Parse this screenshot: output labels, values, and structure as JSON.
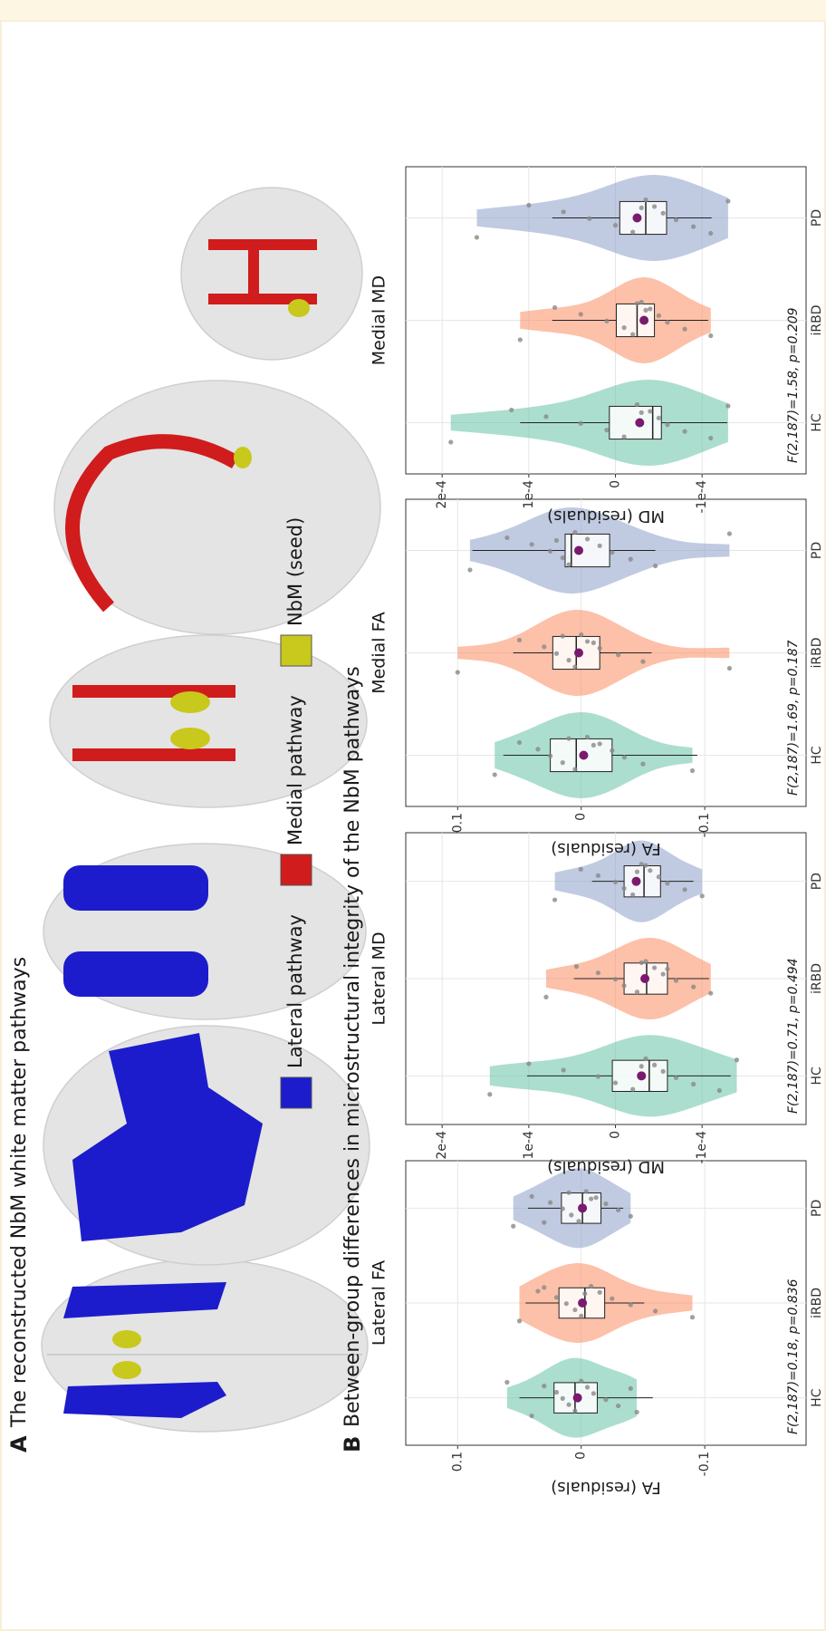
{
  "panel_a": {
    "label": "A",
    "title": "The reconstructed NbM white matter pathways",
    "legend": [
      {
        "name": "Lateral pathway",
        "color": "#1c1ccc"
      },
      {
        "name": "Medial pathway",
        "color": "#d01c1c"
      },
      {
        "name": "NbM (seed)",
        "color": "#c9c81d"
      }
    ]
  },
  "panel_b": {
    "label": "B",
    "title": "Between-group differences in microstructural integrity of the NbM pathways"
  },
  "chart_data": [
    {
      "type": "violin",
      "title": "Lateral FA",
      "ylabel": "FA (residuals)",
      "stat": "F(2,187)=0.18, p=0.836",
      "ylim": [
        -0.182,
        0.142
      ],
      "yticks": [
        -0.1,
        0,
        0.1
      ],
      "groups": [
        {
          "name": "HC",
          "color": "#66c2a5",
          "q1": -0.013,
          "median": 0.005,
          "q3": 0.022,
          "whisker_low": -0.058,
          "whisker_high": 0.05,
          "mean": 0.003,
          "points": [
            0.04,
            0.03,
            0.02,
            0.015,
            0.01,
            0.005,
            0,
            -0.005,
            -0.01,
            -0.02,
            -0.03,
            -0.045,
            0.06,
            -0.04
          ]
        },
        {
          "name": "iRBD",
          "color": "#fc8d62",
          "q1": -0.019,
          "median": -0.003,
          "q3": 0.018,
          "whisker_low": -0.051,
          "whisker_high": 0.045,
          "mean": -0.001,
          "points": [
            0.05,
            0.035,
            0.02,
            0.012,
            0.005,
            0,
            -0.008,
            -0.015,
            -0.025,
            -0.04,
            -0.06,
            -0.09,
            0.03,
            -0.003
          ]
        },
        {
          "name": "PD",
          "color": "#8da0cb",
          "q1": -0.016,
          "median": -0.001,
          "q3": 0.016,
          "whisker_low": -0.034,
          "whisker_high": 0.043,
          "mean": -0.001,
          "points": [
            0.055,
            0.04,
            0.025,
            0.015,
            0.008,
            0.002,
            -0.004,
            -0.012,
            -0.02,
            -0.03,
            -0.04,
            0.03,
            0.01,
            -0.008
          ]
        }
      ]
    },
    {
      "type": "violin",
      "title": "Lateral MD",
      "ylabel": "MD (residuals)",
      "stat": "F(2,187)=0.71, p=0.494",
      "ylim": [
        -0.00022,
        0.000242
      ],
      "yticks": [
        {
          "value": -0.0001,
          "label": "-1e-4"
        },
        0,
        {
          "value": 0.0001,
          "label": "1e-4"
        },
        {
          "value": 0.0002,
          "label": "2e-4"
        }
      ],
      "groups": [
        {
          "name": "HC",
          "color": "#66c2a5",
          "q1": -6e-05,
          "median": -3.9e-05,
          "q3": 3.6e-06,
          "whisker_low": -0.000133,
          "whisker_high": 0.000102,
          "mean": -3e-05,
          "points": [
            0.000145,
            0.0001,
            6e-05,
            2e-05,
            0,
            -2e-05,
            -3.5e-05,
            -4.5e-05,
            -5.5e-05,
            -7e-05,
            -9e-05,
            -0.00012,
            -0.00014,
            -3e-05
          ]
        },
        {
          "name": "iRBD",
          "color": "#fc8d62",
          "q1": -6e-05,
          "median": -3.6e-05,
          "q3": -1e-05,
          "whisker_low": -0.000108,
          "whisker_high": 4.8e-05,
          "mean": -3.4e-05,
          "points": [
            8e-05,
            4.5e-05,
            2e-05,
            0,
            -1e-05,
            -2.5e-05,
            -3.5e-05,
            -4.5e-05,
            -5.5e-05,
            -7e-05,
            -9e-05,
            -0.00011,
            -3e-05,
            -6e-05
          ]
        },
        {
          "name": "PD",
          "color": "#8da0cb",
          "q1": -5.2e-05,
          "median": -3.3e-05,
          "q3": -1e-05,
          "whisker_low": -9e-05,
          "whisker_high": 2.7e-05,
          "mean": -2.4e-05,
          "points": [
            7e-05,
            4e-05,
            2e-05,
            0,
            -1e-05,
            -2e-05,
            -3e-05,
            -4e-05,
            -5e-05,
            -6e-05,
            -8e-05,
            -0.0001,
            -3.5e-05,
            -2.5e-05
          ]
        }
      ]
    },
    {
      "type": "violin",
      "title": "Medial FA",
      "ylabel": "FA (residuals)",
      "stat": "F(2,187)=1.69, p=0.187",
      "ylim": [
        -0.182,
        0.142
      ],
      "yticks": [
        -0.1,
        0,
        0.1
      ],
      "groups": [
        {
          "name": "HC",
          "color": "#66c2a5",
          "q1": -0.025,
          "median": 0.004,
          "q3": 0.025,
          "whisker_low": -0.094,
          "whisker_high": 0.063,
          "mean": -0.002,
          "points": [
            0.07,
            0.05,
            0.035,
            0.025,
            0.015,
            0.005,
            -0.005,
            -0.015,
            -0.025,
            -0.035,
            -0.05,
            -0.09,
            0.01,
            -0.01
          ]
        },
        {
          "name": "iRBD",
          "color": "#fc8d62",
          "q1": -0.015,
          "median": 0.004,
          "q3": 0.023,
          "whisker_low": -0.057,
          "whisker_high": 0.055,
          "mean": 0.002,
          "points": [
            0.1,
            0.05,
            0.03,
            0.02,
            0.01,
            0.005,
            0,
            -0.005,
            -0.015,
            -0.03,
            -0.05,
            -0.12,
            0.015,
            -0.01
          ]
        },
        {
          "name": "PD",
          "color": "#8da0cb",
          "q1": -0.023,
          "median": 0.008,
          "q3": 0.013,
          "whisker_low": -0.06,
          "whisker_high": 0.088,
          "mean": 0.002,
          "points": [
            0.09,
            0.06,
            0.04,
            0.025,
            0.015,
            0.01,
            0.005,
            -0.005,
            -0.015,
            -0.025,
            -0.04,
            -0.06,
            -0.12,
            0.02
          ]
        }
      ]
    },
    {
      "type": "violin",
      "title": "Medial MD",
      "ylabel": "MD (residuals)",
      "stat": "F(2,187)=1.58, p=0.209",
      "ylim": [
        -0.00022,
        0.000242
      ],
      "yticks": [
        {
          "value": -0.0001,
          "label": "-1e-4"
        },
        0,
        {
          "value": 0.0001,
          "label": "1e-4"
        },
        {
          "value": 0.0002,
          "label": "2e-4"
        }
      ],
      "groups": [
        {
          "name": "HC",
          "color": "#66c2a5",
          "q1": -5.3e-05,
          "median": -4.3e-05,
          "q3": 7e-06,
          "whisker_low": -0.000129,
          "whisker_high": 0.00011,
          "mean": -2.8e-05,
          "points": [
            0.00019,
            0.00012,
            8e-05,
            4e-05,
            1e-05,
            -1e-05,
            -2.5e-05,
            -4e-05,
            -5e-05,
            -6e-05,
            -8e-05,
            -0.00011,
            -0.00013,
            -3e-05
          ]
        },
        {
          "name": "iRBD",
          "color": "#fc8d62",
          "q1": -4.5e-05,
          "median": -2.5e-05,
          "q3": -1e-06,
          "whisker_low": -0.000107,
          "whisker_high": 7.3e-05,
          "mean": -3.3e-05,
          "points": [
            0.00011,
            7e-05,
            4e-05,
            1e-05,
            -1e-05,
            -2e-05,
            -3e-05,
            -4e-05,
            -5e-05,
            -6e-05,
            -8e-05,
            -0.00011,
            -2.5e-05,
            -3.5e-05
          ]
        },
        {
          "name": "PD",
          "color": "#8da0cb",
          "q1": -5.9e-05,
          "median": -3.5e-05,
          "q3": -5e-06,
          "whisker_low": -0.000111,
          "whisker_high": 7.3e-05,
          "mean": -2.5e-05,
          "points": [
            0.00016,
            0.0001,
            6e-05,
            3e-05,
            0,
            -2e-05,
            -3.5e-05,
            -4.5e-05,
            -5.5e-05,
            -7e-05,
            -9e-05,
            -0.00011,
            -0.00013,
            -3e-05
          ]
        }
      ]
    }
  ]
}
